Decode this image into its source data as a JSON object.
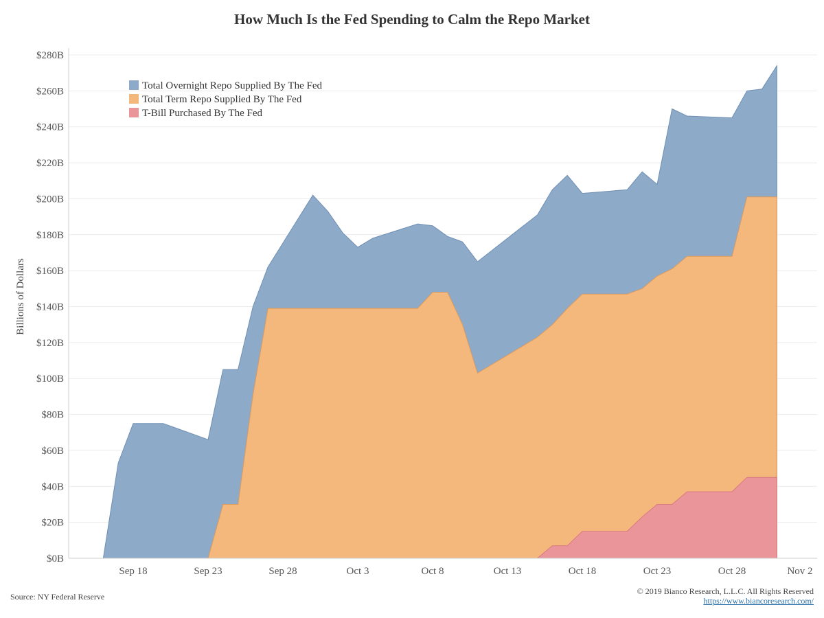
{
  "chart_data": {
    "type": "area",
    "title": "How Much Is the Fed Spending to Calm the Repo Market",
    "xlabel": "",
    "ylabel": "Billions of Dollars",
    "ylim": [
      0,
      280
    ],
    "grid": true,
    "legend_position": "top-left",
    "x_ticks": [
      "Sep 18",
      "Sep 23",
      "Sep 28",
      "Oct 3",
      "Oct 8",
      "Oct 13",
      "Oct 18",
      "Oct 23",
      "Oct 28",
      "Nov 2"
    ],
    "y_ticks": [
      "$0B",
      "$20B",
      "$40B",
      "$60B",
      "$80B",
      "$100B",
      "$120B",
      "$140B",
      "$160B",
      "$180B",
      "$200B",
      "$220B",
      "$240B",
      "$260B",
      "$280B"
    ],
    "series": [
      {
        "name": "Total Overnight Repo Supplied By The Fed",
        "color": "#8eaac9",
        "points": [
          [
            "Sep 16",
            0
          ],
          [
            "Sep 17",
            53
          ],
          [
            "Sep 18",
            75
          ],
          [
            "Sep 19",
            75
          ],
          [
            "Sep 20",
            75
          ],
          [
            "Sep 23",
            66
          ],
          [
            "Sep 24",
            105
          ],
          [
            "Sep 25",
            105
          ],
          [
            "Sep 26",
            140
          ],
          [
            "Sep 27",
            162
          ],
          [
            "Sep 30",
            202
          ],
          [
            "Oct 1",
            193
          ],
          [
            "Oct 2",
            181
          ],
          [
            "Oct 3",
            173
          ],
          [
            "Oct 4",
            178
          ],
          [
            "Oct 7",
            186
          ],
          [
            "Oct 8",
            185
          ],
          [
            "Oct 9",
            179
          ],
          [
            "Oct 10",
            176
          ],
          [
            "Oct 11",
            165
          ],
          [
            "Oct 15",
            191
          ],
          [
            "Oct 16",
            205
          ],
          [
            "Oct 17",
            213
          ],
          [
            "Oct 18",
            203
          ],
          [
            "Oct 21",
            205
          ],
          [
            "Oct 22",
            215
          ],
          [
            "Oct 23",
            208
          ],
          [
            "Oct 24",
            250
          ],
          [
            "Oct 25",
            246
          ],
          [
            "Oct 28",
            245
          ],
          [
            "Oct 29",
            260
          ],
          [
            "Oct 30",
            261
          ],
          [
            "Oct 31",
            274
          ]
        ]
      },
      {
        "name": "Total Term Repo Supplied By The Fed",
        "color": "#f4b77c",
        "points": [
          [
            "Sep 23",
            0
          ],
          [
            "Sep 24",
            30
          ],
          [
            "Sep 25",
            30
          ],
          [
            "Sep 26",
            91
          ],
          [
            "Sep 27",
            139
          ],
          [
            "Oct 7",
            139
          ],
          [
            "Oct 8",
            148
          ],
          [
            "Oct 9",
            148
          ],
          [
            "Oct 10",
            130
          ],
          [
            "Oct 11",
            103
          ],
          [
            "Oct 15",
            123
          ],
          [
            "Oct 16",
            130
          ],
          [
            "Oct 17",
            139
          ],
          [
            "Oct 18",
            147
          ],
          [
            "Oct 21",
            147
          ],
          [
            "Oct 22",
            150
          ],
          [
            "Oct 23",
            157
          ],
          [
            "Oct 24",
            161
          ],
          [
            "Oct 25",
            168
          ],
          [
            "Oct 28",
            168
          ],
          [
            "Oct 29",
            201
          ],
          [
            "Oct 31",
            201
          ]
        ]
      },
      {
        "name": "T-Bill Purchased By The Fed",
        "color": "#e9959a",
        "points": [
          [
            "Oct 15",
            0
          ],
          [
            "Oct 16",
            7
          ],
          [
            "Oct 17",
            7
          ],
          [
            "Oct 18",
            15
          ],
          [
            "Oct 21",
            15
          ],
          [
            "Oct 22",
            23
          ],
          [
            "Oct 23",
            30
          ],
          [
            "Oct 24",
            30
          ],
          [
            "Oct 25",
            37
          ],
          [
            "Oct 28",
            37
          ],
          [
            "Oct 29",
            45
          ],
          [
            "Oct 31",
            45
          ]
        ]
      }
    ]
  },
  "footer": {
    "source": "Source: NY Federal Reserve",
    "copyright": "© 2019 Bianco Research, L.L.C. All Rights Reserved",
    "url": "https://www.biancoresearch.com/"
  }
}
